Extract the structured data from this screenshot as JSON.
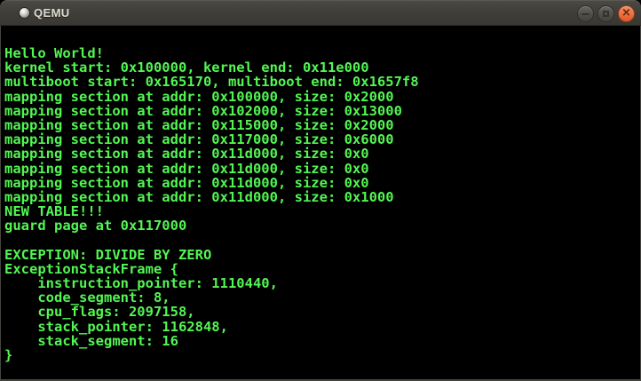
{
  "window": {
    "title": "QEMU",
    "controls": {
      "minimize_label": "minimize",
      "maximize_label": "maximize",
      "close_label": "close",
      "close_glyph": "×"
    },
    "colors": {
      "titlebar": "#3e3d38",
      "title_text": "#dedad1",
      "button_gray": "#504e48",
      "button_close_orange": "#e9703f"
    }
  },
  "terminal": {
    "colors": {
      "background": "#000000",
      "text": "#53f553"
    },
    "lines": [
      "Hello World!",
      "kernel start: 0x100000, kernel end: 0x11e000",
      "multiboot start: 0x165170, multiboot end: 0x1657f8",
      "mapping section at addr: 0x100000, size: 0x2000",
      "mapping section at addr: 0x102000, size: 0x13000",
      "mapping section at addr: 0x115000, size: 0x2000",
      "mapping section at addr: 0x117000, size: 0x6000",
      "mapping section at addr: 0x11d000, size: 0x0",
      "mapping section at addr: 0x11d000, size: 0x0",
      "mapping section at addr: 0x11d000, size: 0x0",
      "mapping section at addr: 0x11d000, size: 0x1000",
      "NEW TABLE!!!",
      "guard page at 0x117000",
      "",
      "EXCEPTION: DIVIDE BY ZERO",
      "ExceptionStackFrame {",
      "    instruction_pointer: 1110440,",
      "    code_segment: 8,",
      "    cpu_flags: 2097158,",
      "    stack_pointer: 1162848,",
      "    stack_segment: 16",
      "}"
    ]
  }
}
